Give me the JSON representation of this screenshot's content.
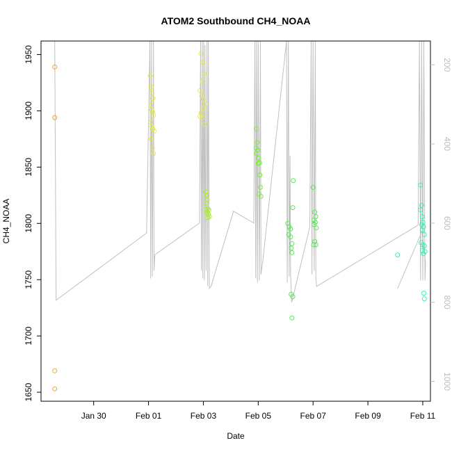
{
  "chart_data": {
    "type": "scatter",
    "title": "ATOM2 Southbound CH4_NOAA",
    "xlabel": "Date",
    "ylabel": "CH4_NOAA",
    "x_unit": "days since Jan 28",
    "xlim": [
      0.0,
      14.2
    ],
    "ylim": [
      1642,
      1962
    ],
    "x_ticks": [
      {
        "x": 1.92,
        "label": "Jan 30"
      },
      {
        "x": 3.92,
        "label": "Feb 01"
      },
      {
        "x": 5.92,
        "label": "Feb 03"
      },
      {
        "x": 7.92,
        "label": "Feb 05"
      },
      {
        "x": 9.92,
        "label": "Feb 07"
      },
      {
        "x": 11.92,
        "label": "Feb 09"
      },
      {
        "x": 13.92,
        "label": "Feb 11"
      }
    ],
    "y_ticks": [
      1650,
      1700,
      1750,
      1800,
      1850,
      1900,
      1950
    ],
    "y2_label": "",
    "y2_ticks": [
      200,
      400,
      600,
      800,
      1000
    ],
    "y2_lim": [
      1050,
      140
    ],
    "series": [
      {
        "name": "",
        "color": "#f5a030",
        "points": [
          [
            0.5,
            1939
          ],
          [
            0.5,
            1894
          ],
          [
            0.5,
            1669
          ],
          [
            0.5,
            1653
          ]
        ]
      },
      {
        "name": "",
        "color": "#e6e84a",
        "points": [
          [
            3.98,
            1931
          ],
          [
            4.02,
            1921
          ],
          [
            4.05,
            1916
          ],
          [
            4.08,
            1911
          ],
          [
            4.0,
            1905
          ],
          [
            4.03,
            1901
          ],
          [
            4.07,
            1899
          ],
          [
            4.1,
            1896
          ],
          [
            4.0,
            1890
          ],
          [
            4.04,
            1886
          ],
          [
            4.08,
            1884
          ],
          [
            4.12,
            1882
          ],
          [
            4.02,
            1875
          ],
          [
            4.06,
            1867
          ],
          [
            4.1,
            1862
          ],
          [
            5.84,
            1951
          ],
          [
            5.9,
            1943
          ],
          [
            5.96,
            1933
          ],
          [
            5.88,
            1926
          ],
          [
            5.8,
            1918
          ],
          [
            5.86,
            1913
          ],
          [
            5.92,
            1910
          ],
          [
            5.98,
            1906
          ],
          [
            5.9,
            1902
          ],
          [
            5.84,
            1898
          ],
          [
            5.8,
            1895
          ],
          [
            5.88,
            1894
          ],
          [
            5.94,
            1888
          ]
        ]
      },
      {
        "name": "",
        "color": "#a8ee2e",
        "points": [
          [
            6.0,
            1828
          ],
          [
            6.04,
            1825
          ],
          [
            6.06,
            1821
          ],
          [
            6.02,
            1818
          ],
          [
            6.08,
            1813
          ],
          [
            6.12,
            1812
          ],
          [
            6.05,
            1810
          ],
          [
            6.1,
            1808
          ],
          [
            6.14,
            1806
          ],
          [
            6.08,
            1805
          ],
          [
            6.03,
            1812
          ]
        ]
      },
      {
        "name": "",
        "color": "#7cec3a",
        "points": [
          [
            7.85,
            1884
          ],
          [
            7.88,
            1872
          ],
          [
            7.84,
            1867
          ],
          [
            7.9,
            1865
          ],
          [
            7.86,
            1862
          ],
          [
            7.93,
            1858
          ],
          [
            7.97,
            1854
          ],
          [
            7.92,
            1853
          ],
          [
            7.98,
            1843
          ],
          [
            8.0,
            1832
          ],
          [
            7.95,
            1826
          ],
          [
            8.02,
            1824
          ]
        ]
      },
      {
        "name": "",
        "color": "#5ae85a",
        "points": [
          [
            9.0,
            1800
          ],
          [
            9.05,
            1797
          ],
          [
            9.1,
            1795
          ],
          [
            9.03,
            1790
          ],
          [
            9.1,
            1788
          ],
          [
            9.15,
            1782
          ],
          [
            9.12,
            1778
          ],
          [
            9.15,
            1774
          ],
          [
            9.2,
            1838
          ],
          [
            9.18,
            1814
          ],
          [
            9.12,
            1737
          ],
          [
            9.18,
            1735
          ],
          [
            9.15,
            1716
          ],
          [
            9.92,
            1832
          ],
          [
            9.98,
            1810
          ],
          [
            10.02,
            1806
          ],
          [
            9.95,
            1803
          ],
          [
            10.0,
            1801
          ],
          [
            9.96,
            1799
          ],
          [
            10.04,
            1796
          ],
          [
            9.98,
            1784
          ],
          [
            10.02,
            1781
          ],
          [
            9.94,
            1781
          ]
        ]
      },
      {
        "name": "",
        "color": "#3aeeb8",
        "points": [
          [
            13.0,
            1772
          ],
          [
            13.84,
            1834
          ],
          [
            13.88,
            1816
          ],
          [
            13.84,
            1812
          ],
          [
            13.9,
            1806
          ],
          [
            13.92,
            1801
          ],
          [
            13.88,
            1799
          ],
          [
            13.95,
            1797
          ],
          [
            13.9,
            1794
          ],
          [
            13.98,
            1790
          ],
          [
            13.86,
            1783
          ],
          [
            13.92,
            1781
          ],
          [
            13.98,
            1780
          ],
          [
            13.9,
            1776
          ],
          [
            14.0,
            1775
          ],
          [
            13.95,
            1773
          ],
          [
            13.96,
            1738
          ],
          [
            13.98,
            1733
          ]
        ]
      }
    ],
    "altitude_trace": {
      "color": "#c0c0c0",
      "points": [
        [
          0.5,
          140
        ],
        [
          0.5,
          140
        ],
        [
          0.55,
          795
        ],
        [
          3.85,
          625
        ],
        [
          3.97,
          140
        ],
        [
          4.0,
          740
        ],
        [
          4.03,
          140
        ],
        [
          4.06,
          735
        ],
        [
          4.1,
          140
        ],
        [
          4.12,
          720
        ],
        [
          4.15,
          680
        ],
        [
          5.78,
          600
        ],
        [
          5.82,
          140
        ],
        [
          5.85,
          720
        ],
        [
          5.88,
          140
        ],
        [
          5.9,
          740
        ],
        [
          5.93,
          140
        ],
        [
          5.96,
          745
        ],
        [
          5.98,
          150
        ],
        [
          6.0,
          540
        ],
        [
          6.02,
          720
        ],
        [
          6.05,
          140
        ],
        [
          6.08,
          760
        ],
        [
          6.1,
          140
        ],
        [
          6.14,
          765
        ],
        [
          6.2,
          760
        ],
        [
          7.02,
          570
        ],
        [
          7.76,
          600
        ],
        [
          7.8,
          140
        ],
        [
          7.83,
          740
        ],
        [
          7.86,
          140
        ],
        [
          7.89,
          750
        ],
        [
          7.92,
          140
        ],
        [
          7.96,
          745
        ],
        [
          8.0,
          140
        ],
        [
          8.02,
          730
        ],
        [
          8.08,
          700
        ],
        [
          8.95,
          140
        ],
        [
          8.98,
          750
        ],
        [
          9.02,
          140
        ],
        [
          9.05,
          735
        ],
        [
          9.08,
          430
        ],
        [
          9.1,
          730
        ],
        [
          9.14,
          800
        ],
        [
          9.8,
          610
        ],
        [
          9.85,
          140
        ],
        [
          9.88,
          730
        ],
        [
          9.92,
          140
        ],
        [
          9.96,
          720
        ],
        [
          10.0,
          140
        ],
        [
          10.02,
          740
        ],
        [
          10.05,
          760
        ],
        [
          13.75,
          605
        ],
        [
          13.8,
          140
        ],
        [
          13.84,
          745
        ],
        [
          13.88,
          140
        ],
        [
          13.92,
          745
        ],
        [
          13.96,
          140
        ],
        [
          14.0,
          745
        ],
        [
          14.02,
          700
        ],
        [
          13.9,
          620
        ],
        [
          13.0,
          765
        ]
      ]
    }
  }
}
